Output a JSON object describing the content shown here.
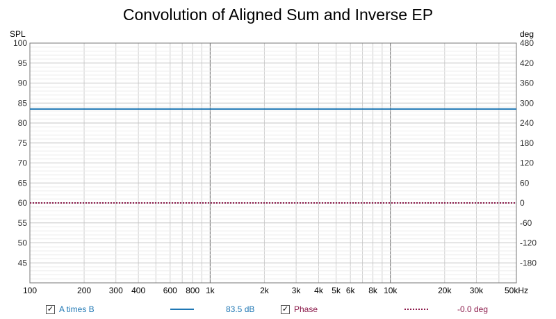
{
  "chart_data": {
    "type": "line",
    "title": "Convolution of Aligned Sum and Inverse EP",
    "x_scale": "log",
    "xlim": [
      100,
      50000
    ],
    "x_ticks": [
      {
        "value": 100,
        "label": "100"
      },
      {
        "value": 200,
        "label": "200"
      },
      {
        "value": 300,
        "label": "300"
      },
      {
        "value": 400,
        "label": "400"
      },
      {
        "value": 600,
        "label": "600"
      },
      {
        "value": 800,
        "label": "800"
      },
      {
        "value": 1000,
        "label": "1k"
      },
      {
        "value": 2000,
        "label": "2k"
      },
      {
        "value": 3000,
        "label": "3k"
      },
      {
        "value": 4000,
        "label": "4k"
      },
      {
        "value": 5000,
        "label": "5k"
      },
      {
        "value": 6000,
        "label": "6k"
      },
      {
        "value": 8000,
        "label": "8k"
      },
      {
        "value": 10000,
        "label": "10k"
      },
      {
        "value": 20000,
        "label": "20k"
      },
      {
        "value": 30000,
        "label": "30k"
      },
      {
        "value": 50000,
        "label": "50kHz"
      }
    ],
    "y_left": {
      "label": "SPL",
      "ylim": [
        40,
        100
      ],
      "ticks": [
        100,
        95,
        90,
        85,
        80,
        75,
        70,
        65,
        60,
        55,
        50,
        45
      ]
    },
    "y_right": {
      "label": "deg",
      "ylim": [
        -240,
        480
      ],
      "ticks": [
        480,
        420,
        360,
        300,
        240,
        180,
        120,
        60,
        0,
        -60,
        -120,
        -180
      ]
    },
    "grid": true,
    "legend_placement": "bottom",
    "series": [
      {
        "name": "A times B",
        "axis": "left",
        "x": [
          100,
          50000
        ],
        "values": [
          83.5,
          83.5
        ],
        "color": "#1f77b4",
        "style": "solid",
        "readout": "83.5 dB",
        "checked": true
      },
      {
        "name": "Phase",
        "axis": "right",
        "x": [
          100,
          50000
        ],
        "values": [
          0,
          0
        ],
        "color": "#8b1a4a",
        "style": "dotted",
        "readout": "-0.0 deg",
        "checked": true
      }
    ]
  }
}
